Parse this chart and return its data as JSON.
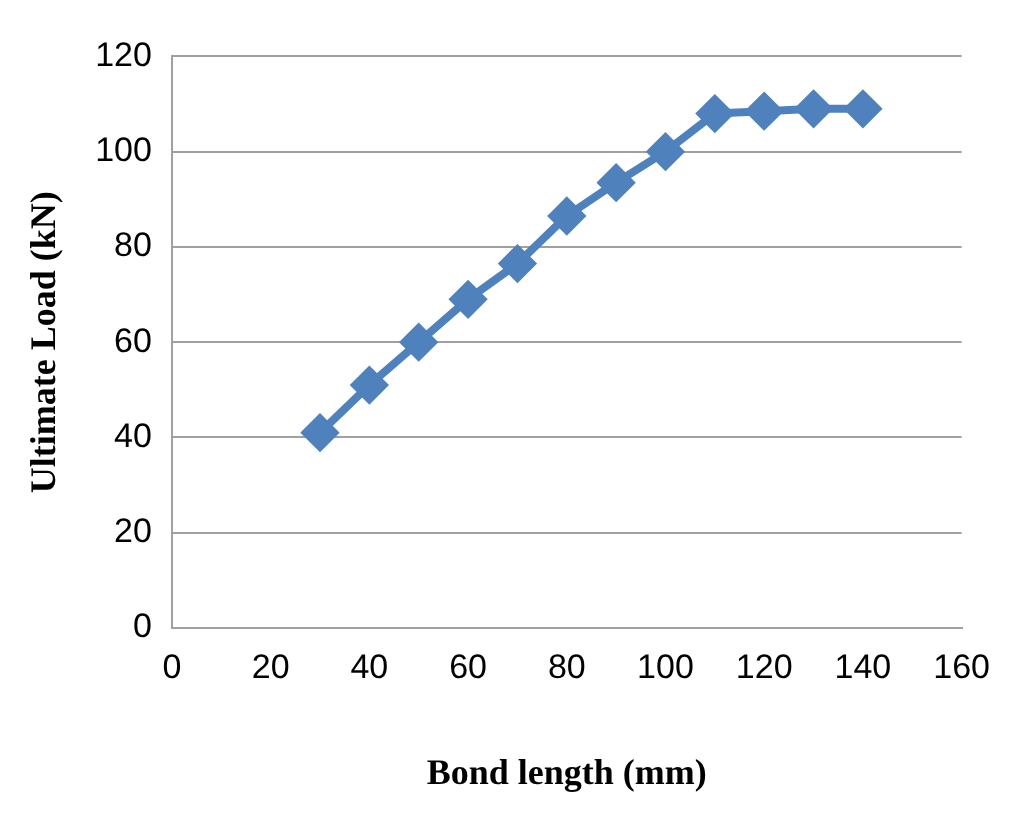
{
  "chart_data": {
    "type": "line",
    "xlabel": "Bond length (mm)",
    "ylabel": "Ultimate Load (kN)",
    "x": [
      30,
      40,
      50,
      60,
      70,
      80,
      90,
      100,
      110,
      120,
      130,
      140
    ],
    "series": [
      {
        "color": "#4f81bd",
        "values": [
          41,
          51,
          60,
          69,
          76.5,
          86.5,
          93.5,
          100,
          108,
          108.5,
          109,
          109
        ]
      }
    ],
    "xlim": [
      0,
      160
    ],
    "xticks": [
      0,
      20,
      40,
      60,
      80,
      100,
      120,
      140,
      160
    ],
    "ylim": [
      0,
      120
    ],
    "yticks": [
      0,
      20,
      40,
      60,
      80,
      100,
      120
    ],
    "grid": "y",
    "legend": false,
    "marker": "diamond",
    "line_style": "solid"
  }
}
